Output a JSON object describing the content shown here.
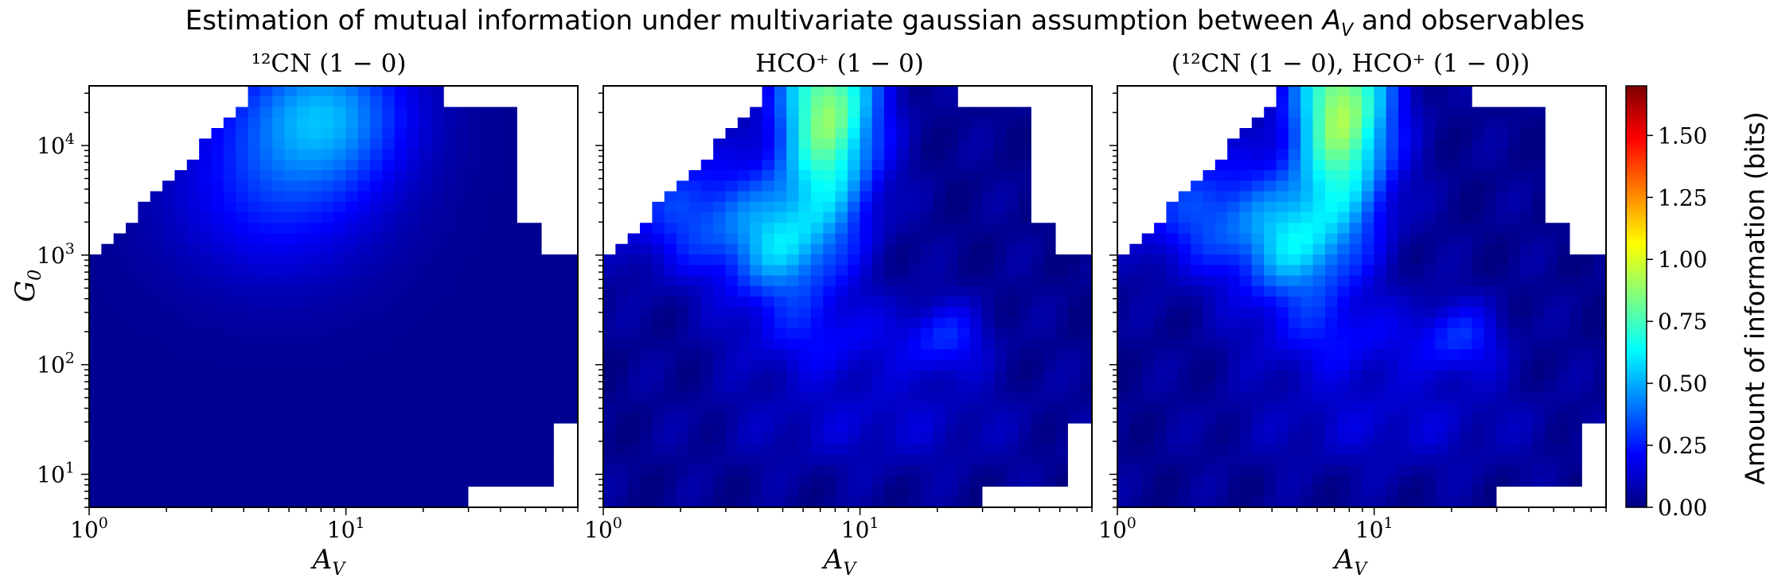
{
  "title": "Estimation of mutual information under multivariate gaussian assumption between A_V and observables",
  "title_parts": {
    "before": "Estimation of mutual information under multivariate gaussian assumption between ",
    "symbol": "A",
    "subscript": "V",
    "after": " and observables"
  },
  "colorbar": {
    "label": "Amount of information (bits)",
    "range": [
      0.0,
      1.7
    ],
    "ticks": [
      "0.00",
      "0.25",
      "0.50",
      "0.75",
      "1.00",
      "1.25",
      "1.50"
    ],
    "colormap": "jet"
  },
  "chart_data": [
    {
      "type": "heatmap",
      "title": "¹²CN (1 − 0)",
      "xlabel": "A_V",
      "xlabel_symbol": "A",
      "xlabel_sub": "V",
      "ylabel": "G_0",
      "ylabel_symbol": "G",
      "ylabel_sub": "0",
      "xscale": "log",
      "yscale": "log",
      "xlim": [
        1,
        80
      ],
      "ylim": [
        5,
        35000
      ],
      "xtick_labels": [
        {
          "base": "10",
          "exp": "0"
        },
        {
          "base": "10",
          "exp": "1"
        }
      ],
      "ytick_labels": [
        {
          "base": "10",
          "exp": "1"
        },
        {
          "base": "10",
          "exp": "2"
        },
        {
          "base": "10",
          "exp": "3"
        },
        {
          "base": "10",
          "exp": "4"
        }
      ],
      "peak_information_bits": 0.45,
      "peak_location": {
        "A_V": 9,
        "G_0": 15000
      }
    },
    {
      "type": "heatmap",
      "title": "HCO⁺ (1 − 0)",
      "xlabel": "A_V",
      "xlabel_symbol": "A",
      "xlabel_sub": "V",
      "ylabel": "G_0",
      "xscale": "log",
      "yscale": "log",
      "xlim": [
        1,
        80
      ],
      "ylim": [
        5,
        35000
      ],
      "xtick_labels": [
        {
          "base": "10",
          "exp": "0"
        },
        {
          "base": "10",
          "exp": "1"
        }
      ],
      "peak_information_bits": 0.9,
      "peak_location": {
        "A_V": 7,
        "G_0": 14000
      }
    },
    {
      "type": "heatmap",
      "title": "(¹²CN (1 − 0), HCO⁺ (1 − 0))",
      "xlabel": "A_V",
      "xlabel_symbol": "A",
      "xlabel_sub": "V",
      "ylabel": "G_0",
      "xscale": "log",
      "yscale": "log",
      "xlim": [
        1,
        80
      ],
      "ylim": [
        5,
        35000
      ],
      "xtick_labels": [
        {
          "base": "10",
          "exp": "0"
        },
        {
          "base": "10",
          "exp": "1"
        }
      ],
      "peak_information_bits": 0.95,
      "peak_location": {
        "A_V": 7,
        "G_0": 14000
      }
    }
  ]
}
